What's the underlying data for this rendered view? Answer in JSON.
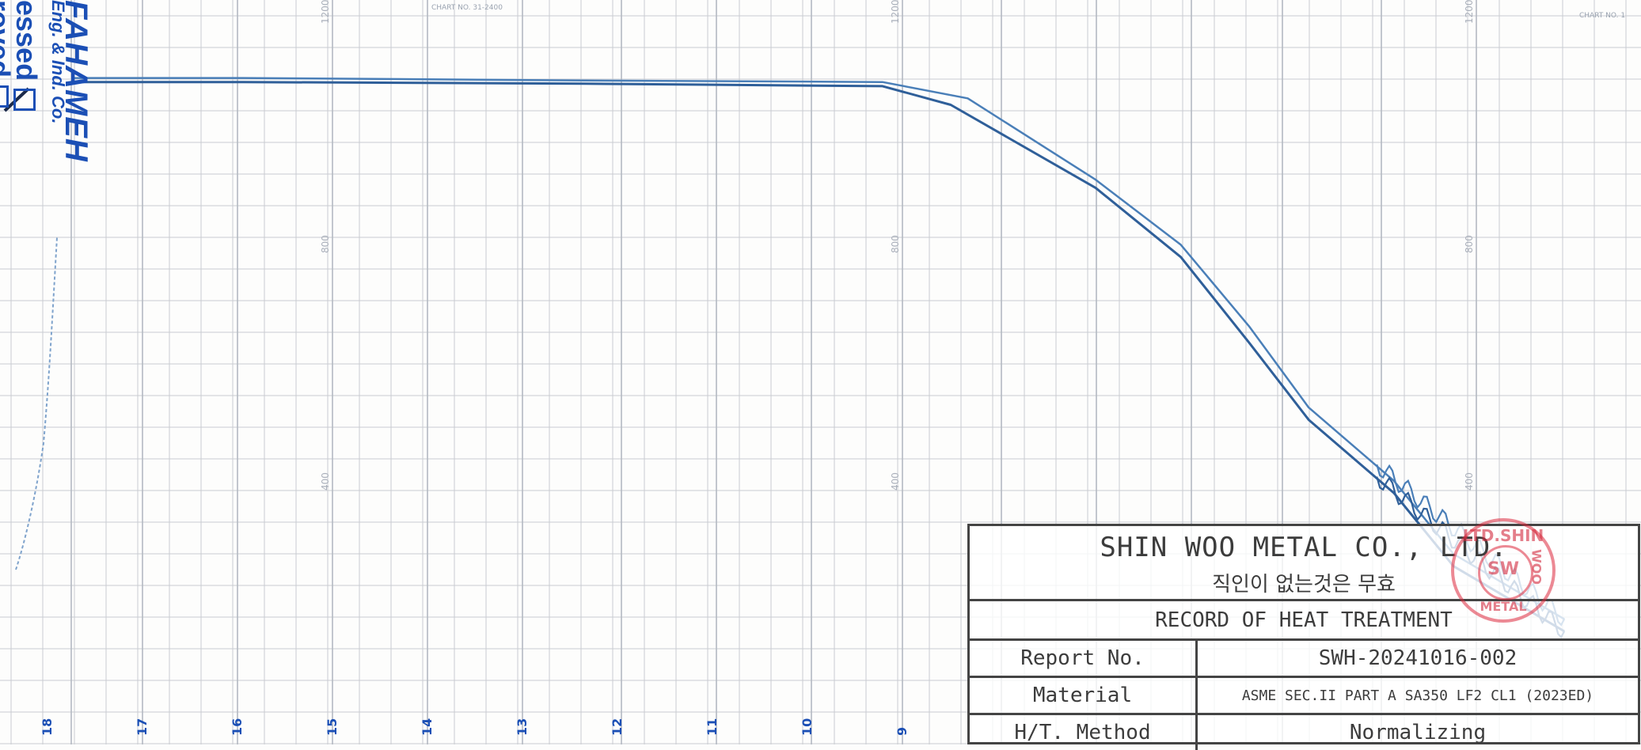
{
  "approval_stamp": {
    "company": "FAHAMEH",
    "company_sub": "Eng. & Ind. Co.",
    "option_1": "essed",
    "option_2": "roved"
  },
  "chart": {
    "header_label": "CHART NO. 31-2400",
    "header_label_right": "CHART NO. 1",
    "column_numbers": [
      "18",
      "17",
      "16",
      "15",
      "14",
      "13",
      "12",
      "11",
      "10",
      "9"
    ],
    "scale_ticks": [
      "1200",
      "800",
      "400"
    ],
    "colors": {
      "grid": "#c9ccd2",
      "trace": "#4a7fb8",
      "trace_dark": "#2f5f99",
      "ink_blue": "#1b4fb5"
    }
  },
  "chart_data": {
    "type": "line",
    "title": "",
    "xlabel": "",
    "ylabel": "",
    "series": [
      {
        "x": [
          0,
          2,
          6,
          9.5,
          10.5,
          12,
          13,
          13.8,
          14.5,
          15.5,
          16.2,
          17.5
        ],
        "y": [
          1125,
          1125,
          1122,
          1120,
          1100,
          1000,
          920,
          820,
          720,
          630,
          540,
          460
        ]
      },
      {
        "x": [
          0,
          2,
          6,
          9.5,
          10.3,
          12,
          13,
          13.8,
          14.5,
          15.5,
          16.2,
          17.5
        ],
        "y": [
          1120,
          1120,
          1118,
          1115,
          1092,
          990,
          905,
          800,
          705,
          615,
          525,
          445
        ]
      }
    ],
    "ylim": [
      200,
      1250
    ],
    "xlim": [
      0,
      18
    ]
  },
  "report": {
    "company": "SHIN WOO METAL CO., LTD.",
    "stamp_note": "직인이 없는것은 무효",
    "title": "RECORD OF HEAT TREATMENT",
    "rows": [
      {
        "label": "Report No.",
        "value": "SWH-20241016-002"
      },
      {
        "label": "Material",
        "value": "ASME SEC.II PART A SA350 LF2 CL1 (2023ED)"
      },
      {
        "label": "H/T. Method",
        "value": "Normalizing"
      }
    ]
  },
  "seal": {
    "top": "LTD.SHIN",
    "right": "WOO",
    "bottom": "METAL",
    "center": "SW"
  }
}
